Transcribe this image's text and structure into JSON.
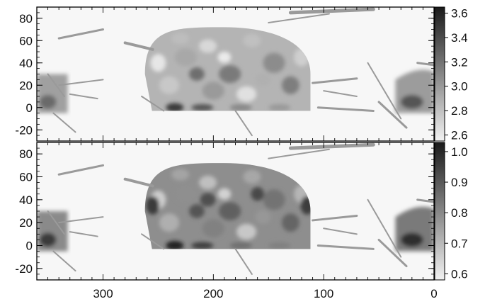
{
  "chart_data": [
    {
      "type": "heatmap",
      "panel": "top",
      "xlim": [
        360,
        0
      ],
      "ylim": [
        -30,
        90
      ],
      "x_ticks": [
        300,
        200,
        100,
        0
      ],
      "y_ticks": [
        80,
        60,
        40,
        20,
        0,
        -20
      ],
      "y_tick_labels": [
        "80",
        "60",
        "40",
        "20",
        "0",
        "-20"
      ],
      "colorbar": {
        "range": [
          2.55,
          3.65
        ],
        "ticks": [
          3.6,
          3.4,
          3.2,
          3.0,
          2.8,
          2.6
        ],
        "tick_labels": [
          "3.6",
          "3.4",
          "3.2",
          "3.0",
          "2.8",
          "2.6"
        ],
        "colormap": "grayscale, dark = high"
      },
      "background_color": "#f7f7f7"
    },
    {
      "type": "heatmap",
      "panel": "bottom",
      "xlim": [
        360,
        0
      ],
      "ylim": [
        -30,
        90
      ],
      "x_ticks": [
        300,
        200,
        100,
        0
      ],
      "x_tick_labels": [
        "300",
        "200",
        "100",
        "0"
      ],
      "y_ticks": [
        80,
        60,
        40,
        20,
        0,
        -20
      ],
      "y_tick_labels": [
        "80",
        "60",
        "40",
        "20",
        "0",
        "-20"
      ],
      "colorbar": {
        "range": [
          0.58,
          1.03
        ],
        "ticks": [
          1.0,
          0.9,
          0.8,
          0.7,
          0.6
        ],
        "tick_labels": [
          "1.0",
          "0.9",
          "0.8",
          "0.7",
          "0.6"
        ],
        "colormap": "grayscale, dark = high"
      },
      "background_color": "#f7f7f7"
    }
  ]
}
